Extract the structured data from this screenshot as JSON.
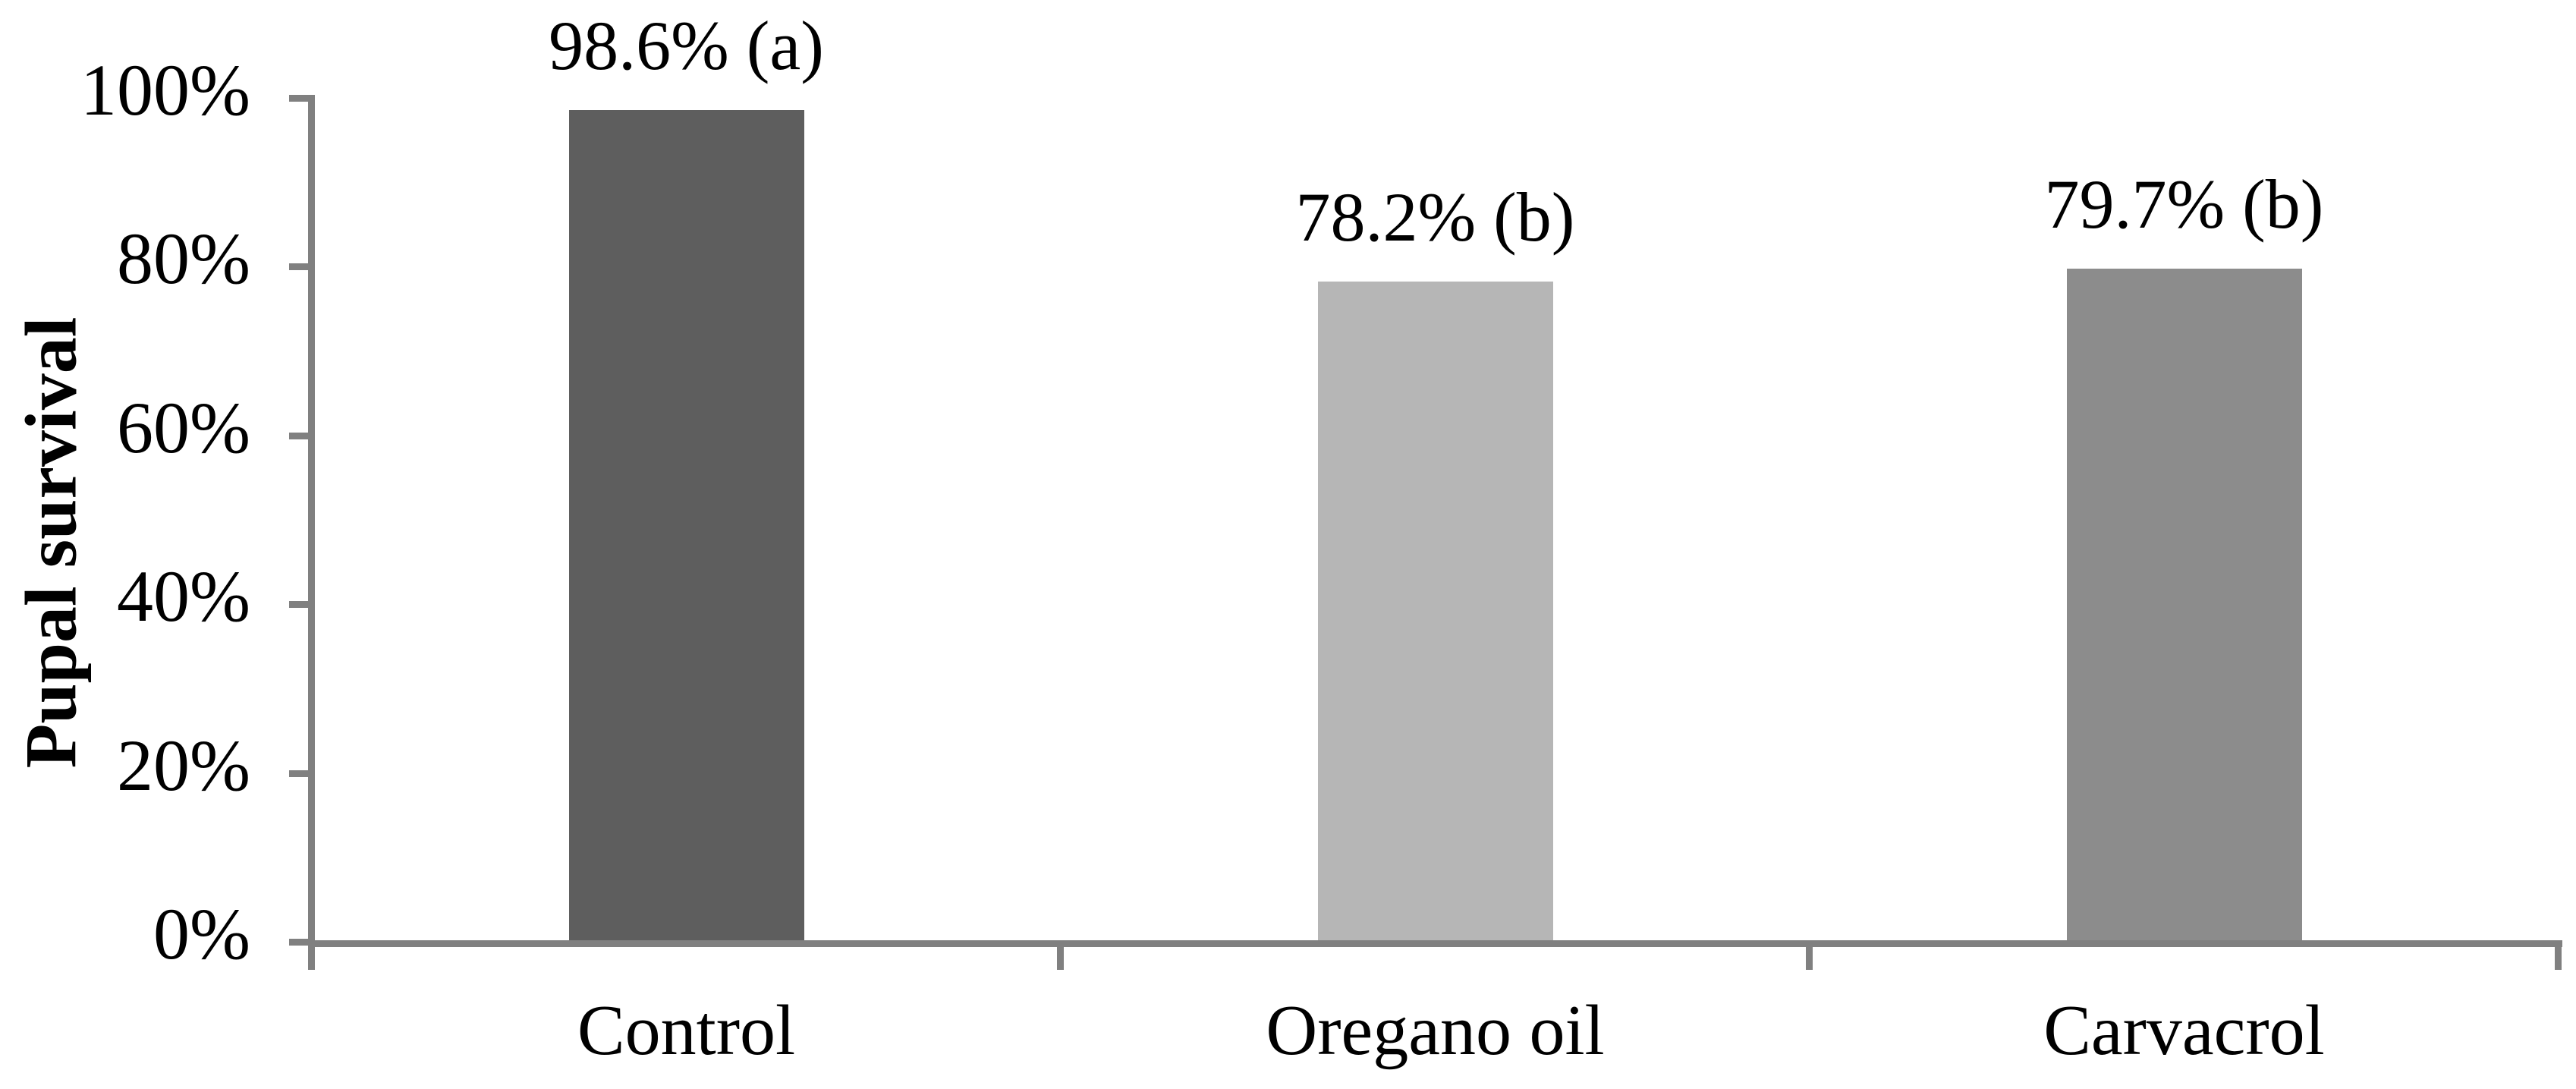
{
  "chart_data": {
    "type": "bar",
    "title": "",
    "xlabel": "",
    "ylabel": "Pupal survival",
    "categories": [
      "Control",
      "Oregano oil",
      "Carvacrol"
    ],
    "values": [
      98.6,
      78.2,
      79.7
    ],
    "labels": [
      "98.6% (a)",
      "78.2% (b)",
      "79.7% (b)"
    ],
    "significance_groups": [
      "a",
      "b",
      "b"
    ],
    "y_ticks": [
      "100%",
      "80%",
      "60%",
      "40%",
      "20%",
      "0%"
    ],
    "y_tick_values": [
      100,
      80,
      60,
      40,
      20,
      0
    ],
    "ylim": [
      0,
      100
    ],
    "grid": false,
    "legend": "none",
    "bar_colors": [
      "#5E5E5E",
      "#B6B6B6",
      "#8C8C8C"
    ],
    "axis_color": "#808080",
    "text_color": "#000000",
    "background_color": "#FFFFFF"
  }
}
